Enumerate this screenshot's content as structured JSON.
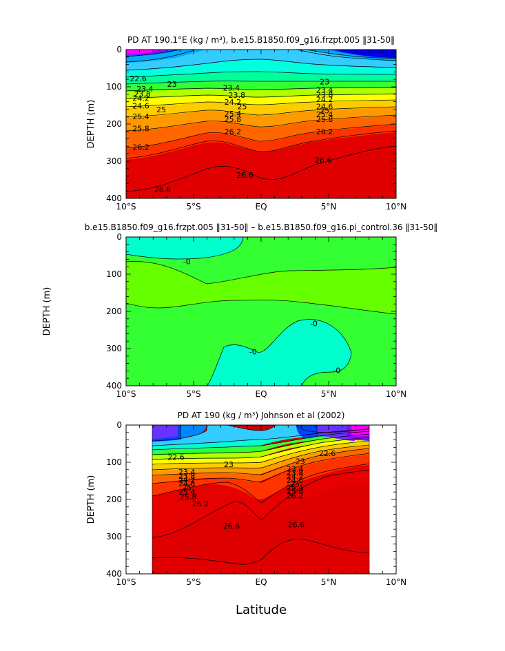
{
  "figure": {
    "xlabel": "Latitude",
    "x_ticks": [
      "10°S",
      "5°S",
      "EQ",
      "5°N",
      "10°N"
    ],
    "y_ticks": [
      "0",
      "100",
      "200",
      "300",
      "400"
    ]
  },
  "chart_data": [
    {
      "type": "heatmap",
      "title": "PD AT 190.1°E (kg / m³), b.e15.B1850.f09_g16.frzpt.005 ‖31-50‖",
      "xlabel": "",
      "ylabel": "DEPTH (m)",
      "xlim": [
        -10,
        10
      ],
      "ylim": [
        400,
        0
      ],
      "x_ticks": [
        "10°S",
        "5°S",
        "EQ",
        "5°N",
        "10°N"
      ],
      "y_ticks": [
        0,
        100,
        200,
        300,
        400
      ],
      "contour_interval": 0.2,
      "contour_labels": [
        {
          "text": "22.6",
          "lat": -9.1,
          "depth": 78
        },
        {
          "text": "23",
          "lat": -6.6,
          "depth": 93
        },
        {
          "text": "23",
          "lat": 4.7,
          "depth": 86
        },
        {
          "text": "23.4",
          "lat": -8.6,
          "depth": 106
        },
        {
          "text": "23.4",
          "lat": -2.2,
          "depth": 103
        },
        {
          "text": "23.4",
          "lat": 4.7,
          "depth": 108
        },
        {
          "text": "23.8",
          "lat": -8.8,
          "depth": 119
        },
        {
          "text": "23.8",
          "lat": -1.8,
          "depth": 122
        },
        {
          "text": "23.8",
          "lat": 4.7,
          "depth": 121
        },
        {
          "text": "24.2",
          "lat": -8.9,
          "depth": 131
        },
        {
          "text": "24.2",
          "lat": -2.1,
          "depth": 141
        },
        {
          "text": "24.2",
          "lat": 4.7,
          "depth": 133
        },
        {
          "text": "24.6",
          "lat": -8.9,
          "depth": 151
        },
        {
          "text": "24.6",
          "lat": 4.7,
          "depth": 153
        },
        {
          "text": "25",
          "lat": -7.4,
          "depth": 161
        },
        {
          "text": "25",
          "lat": -1.4,
          "depth": 153
        },
        {
          "text": "25",
          "lat": 4.7,
          "depth": 164
        },
        {
          "text": "25.4",
          "lat": -8.9,
          "depth": 180
        },
        {
          "text": "25.4",
          "lat": -2.1,
          "depth": 172
        },
        {
          "text": "25.4",
          "lat": 4.7,
          "depth": 174
        },
        {
          "text": "25.8",
          "lat": -8.9,
          "depth": 212
        },
        {
          "text": "25.8",
          "lat": -2.1,
          "depth": 187
        },
        {
          "text": "25.8",
          "lat": 4.7,
          "depth": 187
        },
        {
          "text": "26.2",
          "lat": -8.9,
          "depth": 262
        },
        {
          "text": "26.2",
          "lat": -2.1,
          "depth": 220
        },
        {
          "text": "26.2",
          "lat": 4.7,
          "depth": 220
        },
        {
          "text": "26.6",
          "lat": -7.3,
          "depth": 376
        },
        {
          "text": "26.6",
          "lat": -1.2,
          "depth": 337
        },
        {
          "text": "26.6",
          "lat": 4.6,
          "depth": 297
        }
      ]
    },
    {
      "type": "heatmap",
      "title": "b.e15.B1850.f09_g16.frzpt.005 ‖31-50‖ – b.e15.B1850.f09_g16.pi_control.36 ‖31-50‖",
      "xlabel": "",
      "ylabel": "DEPTH (m)",
      "xlim": [
        -10,
        10
      ],
      "ylim": [
        400,
        0
      ],
      "x_ticks": [
        "10°S",
        "5°S",
        "EQ",
        "5°N",
        "10°N"
      ],
      "y_ticks": [
        0,
        100,
        200,
        300,
        400
      ],
      "contour_labels": [
        {
          "text": "-0",
          "lat": -5.5,
          "depth": 66
        },
        {
          "text": "-0",
          "lat": 3.9,
          "depth": 232
        },
        {
          "text": "-0",
          "lat": -0.6,
          "depth": 308
        },
        {
          "text": "-0",
          "lat": 5.6,
          "depth": 358
        }
      ]
    },
    {
      "type": "heatmap",
      "title": "PD AT 190 (kg / m³) Johnson et al (2002)",
      "xlabel": "Latitude",
      "ylabel": "DEPTH (m)",
      "xlim": [
        -10,
        10
      ],
      "ylim": [
        400,
        0
      ],
      "data_lat_range": [
        -8,
        8
      ],
      "x_ticks": [
        "10°S",
        "5°S",
        "EQ",
        "5°N",
        "10°N"
      ],
      "y_ticks": [
        0,
        100,
        200,
        300,
        400
      ],
      "contour_interval": 0.2,
      "contour_labels": [
        {
          "text": "22.6",
          "lat": -6.3,
          "depth": 86
        },
        {
          "text": "23",
          "lat": -2.4,
          "depth": 106
        },
        {
          "text": "23",
          "lat": 2.9,
          "depth": 97
        },
        {
          "text": "22.6",
          "lat": 4.9,
          "depth": 76
        },
        {
          "text": "23.4",
          "lat": -5.5,
          "depth": 126
        },
        {
          "text": "23.8",
          "lat": -5.5,
          "depth": 137
        },
        {
          "text": "24.2",
          "lat": -5.5,
          "depth": 147
        },
        {
          "text": "24.6",
          "lat": -5.5,
          "depth": 157
        },
        {
          "text": "25",
          "lat": -5.5,
          "depth": 168
        },
        {
          "text": "25.4",
          "lat": -5.5,
          "depth": 180
        },
        {
          "text": "25.8",
          "lat": -5.4,
          "depth": 193
        },
        {
          "text": "26.2",
          "lat": -4.5,
          "depth": 211
        },
        {
          "text": "26.6",
          "lat": -2.2,
          "depth": 271
        },
        {
          "text": "23.4",
          "lat": 2.5,
          "depth": 118
        },
        {
          "text": "23.8",
          "lat": 2.5,
          "depth": 128
        },
        {
          "text": "24.2",
          "lat": 2.5,
          "depth": 138
        },
        {
          "text": "24.6",
          "lat": 2.5,
          "depth": 148
        },
        {
          "text": "25",
          "lat": 2.5,
          "depth": 158
        },
        {
          "text": "25.4",
          "lat": 2.5,
          "depth": 168
        },
        {
          "text": "25.8",
          "lat": 2.5,
          "depth": 178
        },
        {
          "text": "26.2",
          "lat": 2.5,
          "depth": 190
        },
        {
          "text": "26.6",
          "lat": 2.6,
          "depth": 268
        }
      ]
    }
  ]
}
